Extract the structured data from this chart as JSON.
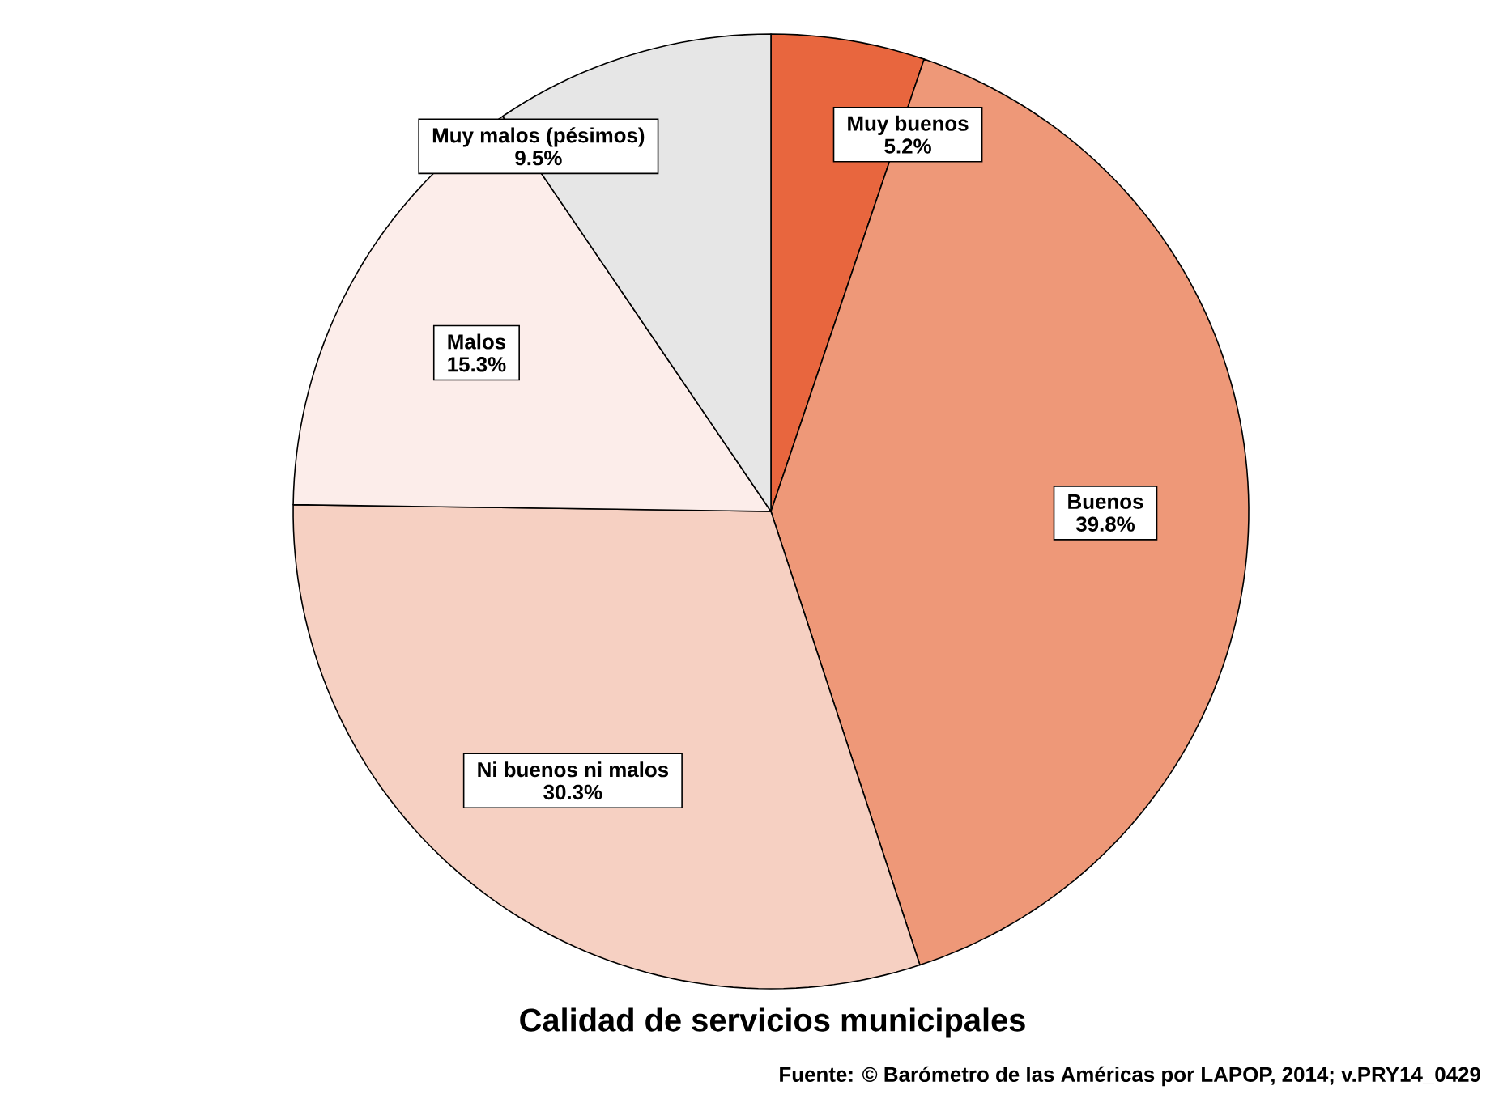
{
  "chart_data": {
    "type": "pie",
    "title": "Calidad de servicios municipales",
    "categories": [
      "Muy buenos",
      "Buenos",
      "Ni buenos ni malos",
      "Malos",
      "Muy malos (pésimos)"
    ],
    "values": [
      5.2,
      39.8,
      30.3,
      15.3,
      9.5
    ],
    "value_labels": [
      "5.2%",
      "39.8%",
      "30.3%",
      "15.3%",
      "9.5%"
    ],
    "colors": [
      "#e8663e",
      "#ee9878",
      "#f6d0c2",
      "#fcedea",
      "#e6e6e6"
    ],
    "annotations": [
      "Fuente: © Barómetro de las Américas por LAPOP, 2014; v.PRY14_0429"
    ]
  }
}
